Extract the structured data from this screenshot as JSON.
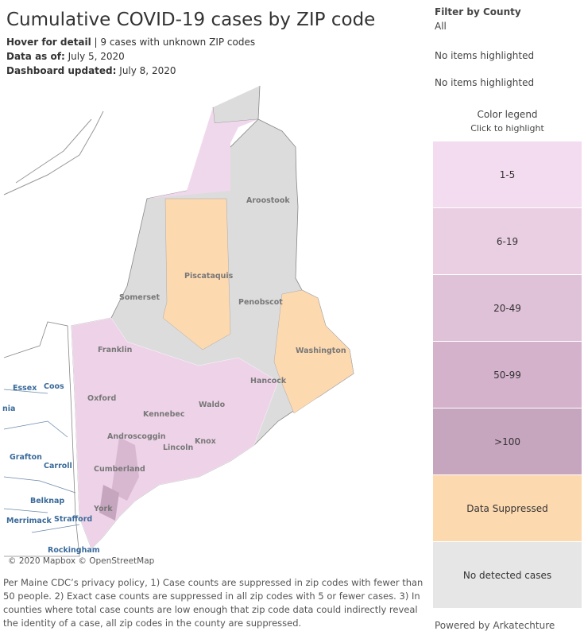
{
  "header": {
    "title": "Cumulative COVID-19 cases by ZIP code",
    "hover": "Hover for detail",
    "unknown_zip": "9 cases with unknown ZIP codes",
    "data_as_of_label": "Data as of:",
    "data_as_of": "July 5, 2020",
    "updated_label": "Dashboard updated:",
    "updated": "July 8, 2020"
  },
  "map": {
    "labels": [
      "Aroostook",
      "Piscataquis",
      "Somerset",
      "Penobscot",
      "Washington",
      "Franklin",
      "Hancock",
      "Oxford",
      "Waldo",
      "Kennebec",
      "Androscoggin",
      "Knox",
      "Lincoln",
      "Cumberland",
      "York",
      "Essex",
      "Coos",
      "nia",
      "Grafton",
      "Carroll",
      "Belknap",
      "Merrimack",
      "Strafford",
      "Rockingham"
    ],
    "attribution": "© 2020 Mapbox © OpenStreetMap"
  },
  "footnote": "Per Maine CDC’s privacy policy, 1) Case counts are suppressed in zip codes with fewer than 50 people. 2) Exact case counts are suppressed in all zip codes with 5 or fewer cases. 3) In counties where total case counts are low enough that zip code data could indirectly reveal the identity of a case, all zip codes in the county are suppressed.",
  "filter": {
    "title": "Filter by County",
    "value": "All",
    "highlight_1": "No items highlighted",
    "highlight_2": "No items highlighted"
  },
  "legend": {
    "title": "Color legend",
    "subtitle": "Click to highlight",
    "items": [
      {
        "label": "1-5",
        "color": "#f3dcef"
      },
      {
        "label": "6-19",
        "color": "#eacfe3"
      },
      {
        "label": "20-49",
        "color": "#dfc1d8"
      },
      {
        "label": "50-99",
        "color": "#d4b2cc"
      },
      {
        "label": ">100",
        "color": "#c6a5bf"
      },
      {
        "label": "Data Suppressed",
        "color": "#fdd9b0"
      },
      {
        "label": "No detected cases",
        "color": "#e6e6e6"
      }
    ]
  },
  "powered_by": "Powered by Arkatechture"
}
